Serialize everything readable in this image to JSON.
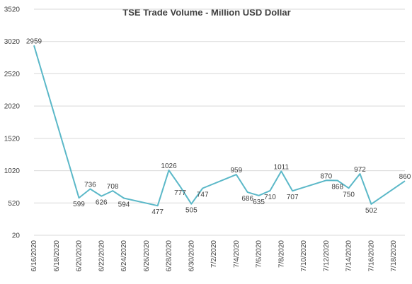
{
  "chart_data": {
    "type": "line",
    "title": "TSE Trade Volume - Million USD Dollar",
    "xlabel": "",
    "ylabel": "",
    "ylim": [
      20,
      3520
    ],
    "yticks": [
      20,
      520,
      1020,
      1520,
      2020,
      2520,
      3020,
      3520
    ],
    "xticks": [
      "6/16/2020",
      "6/18/2020",
      "6/20/2020",
      "6/22/2020",
      "6/24/2020",
      "6/26/2020",
      "6/28/2020",
      "6/30/2020",
      "7/2/2020",
      "7/4/2020",
      "7/6/2020",
      "7/8/2020",
      "7/10/2020",
      "7/12/2020",
      "7/14/2020",
      "7/16/2020",
      "7/18/2020"
    ],
    "grid": true,
    "legend": "none",
    "colors": {
      "line": "#5bb8c8",
      "grid": "#d9d9d9",
      "text": "#404040"
    },
    "points": [
      {
        "date": "6/16/2020",
        "value": 2959
      },
      {
        "date": "6/20/2020",
        "value": 599
      },
      {
        "date": "6/21/2020",
        "value": 736
      },
      {
        "date": "6/22/2020",
        "value": 626
      },
      {
        "date": "6/23/2020",
        "value": 708
      },
      {
        "date": "6/24/2020",
        "value": 594
      },
      {
        "date": "6/27/2020",
        "value": 477
      },
      {
        "date": "6/28/2020",
        "value": 1026
      },
      {
        "date": "6/29/2020",
        "value": 777
      },
      {
        "date": "6/30/2020",
        "value": 505
      },
      {
        "date": "7/1/2020",
        "value": 747
      },
      {
        "date": "7/4/2020",
        "value": 959
      },
      {
        "date": "7/5/2020",
        "value": 686
      },
      {
        "date": "7/6/2020",
        "value": 635
      },
      {
        "date": "7/7/2020",
        "value": 710
      },
      {
        "date": "7/8/2020",
        "value": 1011
      },
      {
        "date": "7/9/2020",
        "value": 707
      },
      {
        "date": "7/12/2020",
        "value": 870
      },
      {
        "date": "7/13/2020",
        "value": 868
      },
      {
        "date": "7/14/2020",
        "value": 750
      },
      {
        "date": "7/15/2020",
        "value": 972
      },
      {
        "date": "7/16/2020",
        "value": 502
      },
      {
        "date": "7/19/2020",
        "value": 860
      }
    ]
  }
}
